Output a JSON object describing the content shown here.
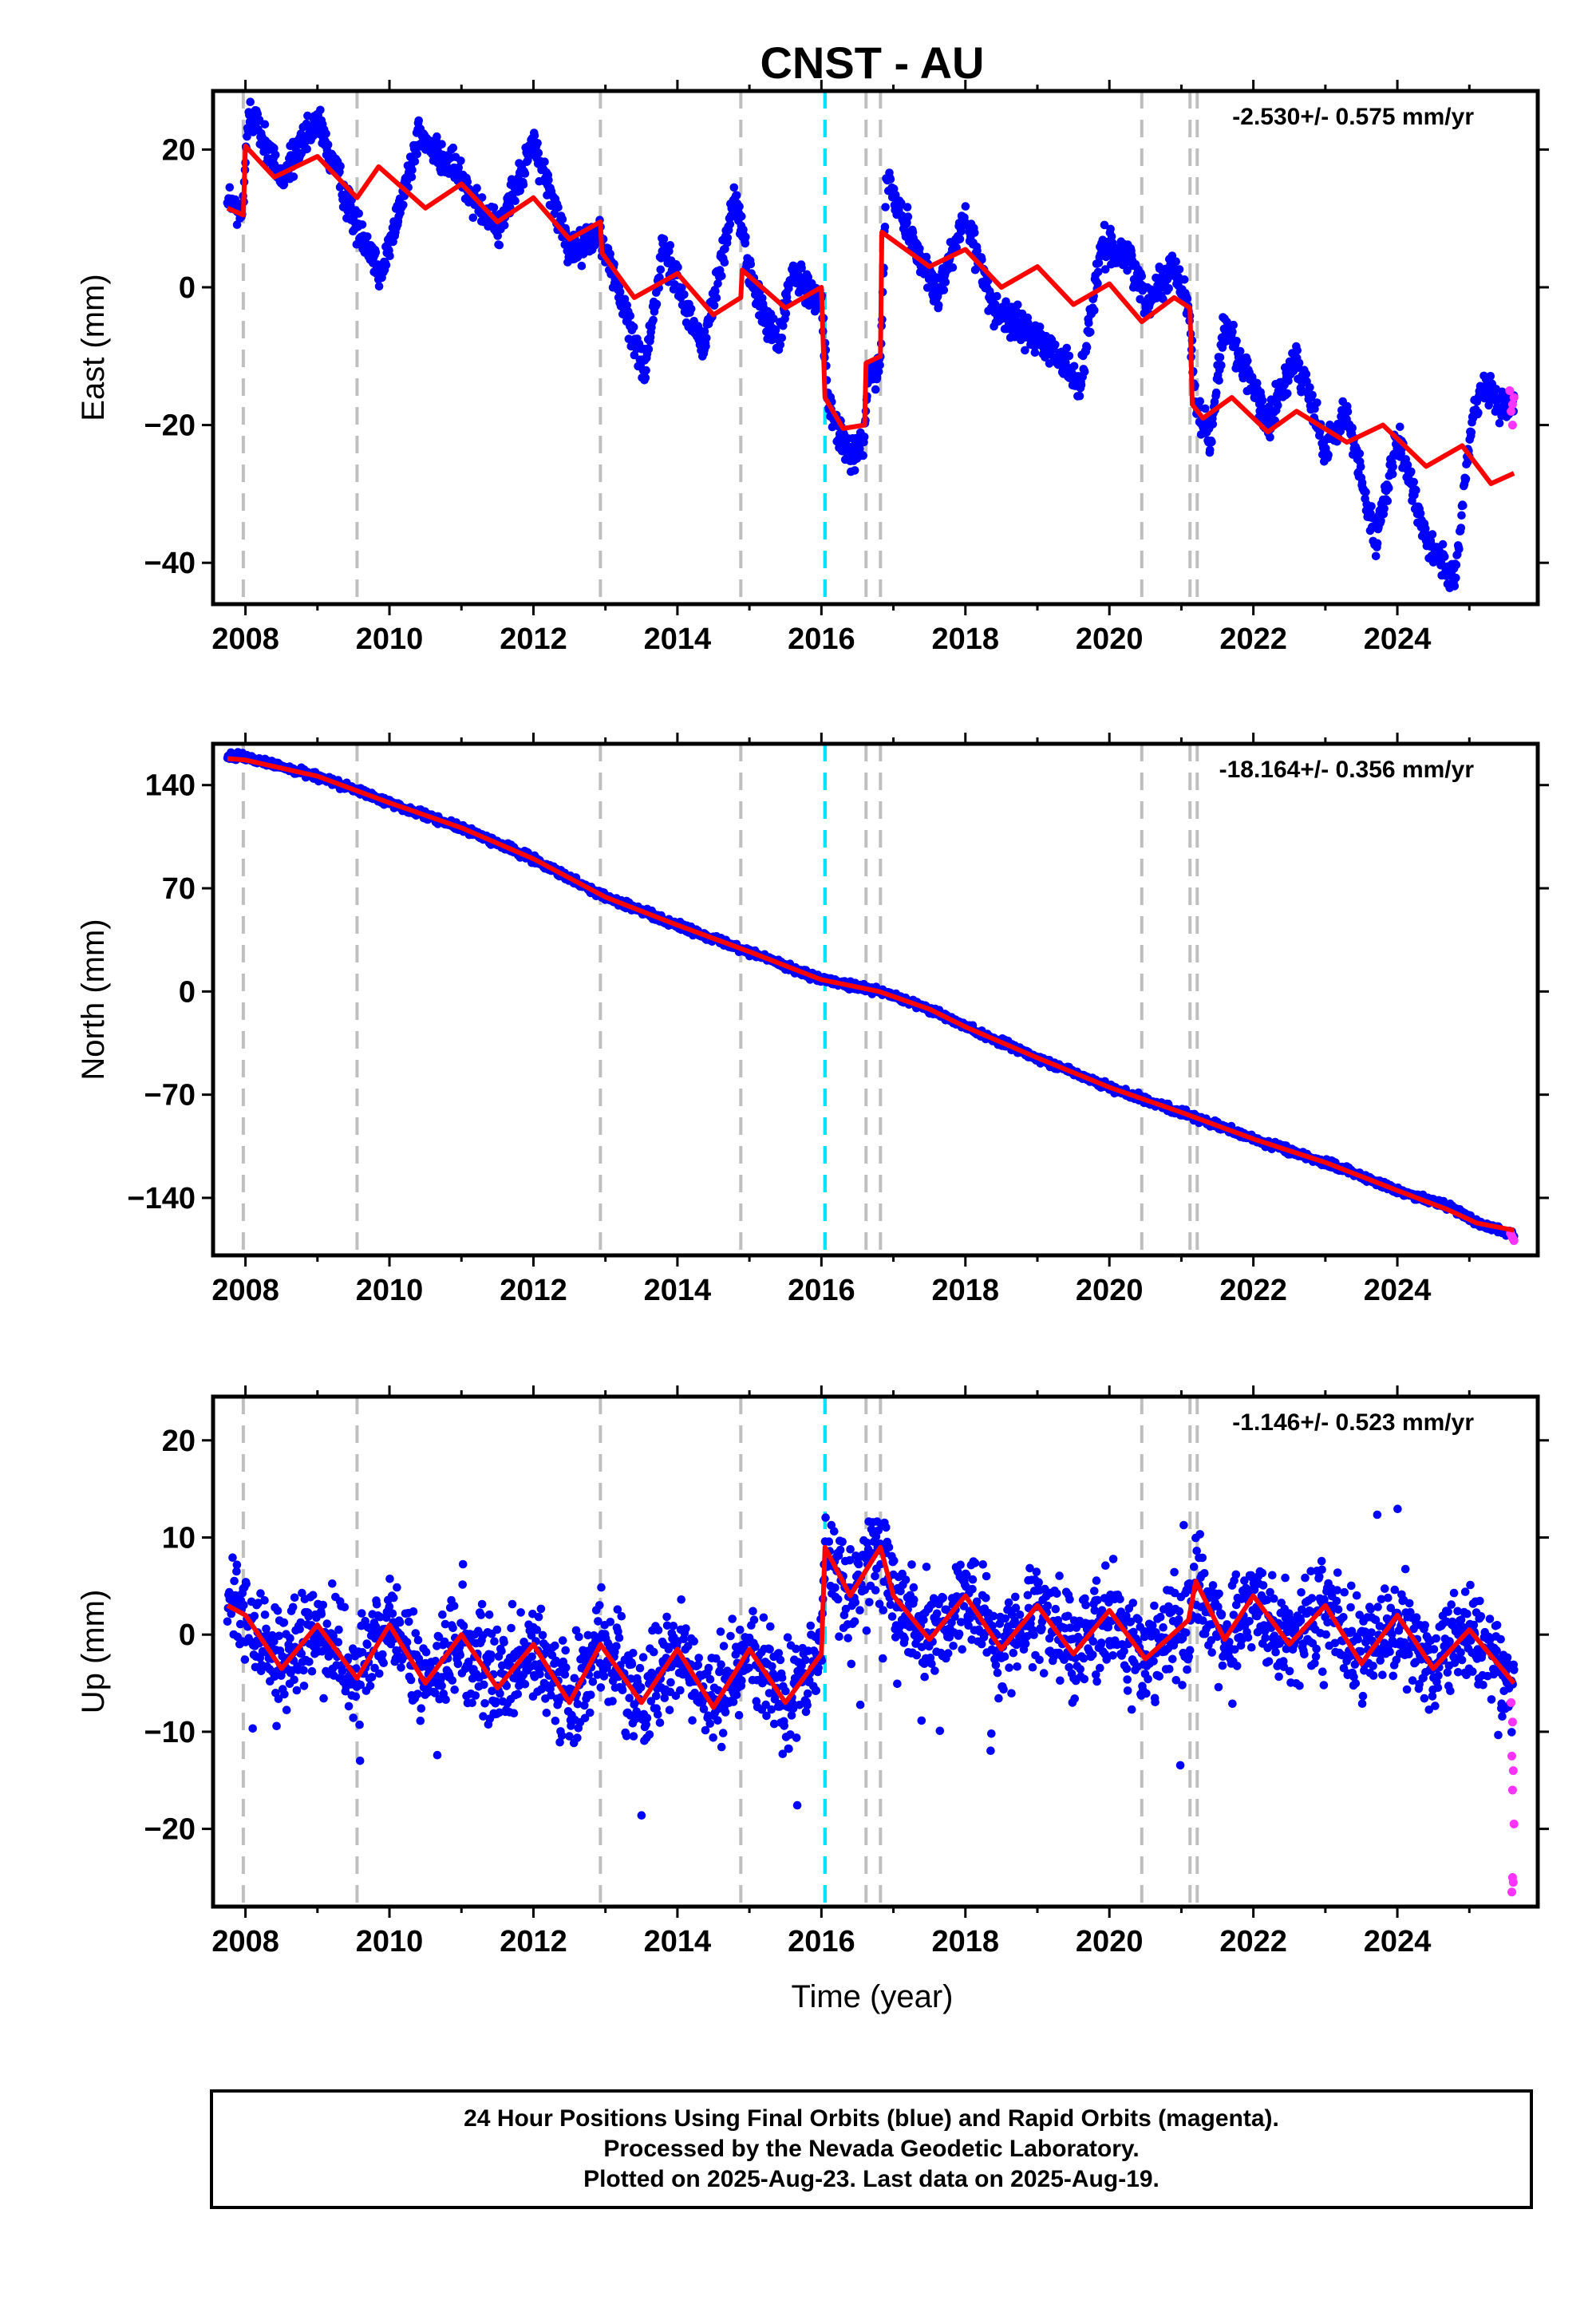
{
  "chart_data": [
    {
      "type": "scatter",
      "title": "CNST - AU",
      "ylabel": "East (mm)",
      "xlabel": "",
      "xlim": [
        2007.55,
        2025.95
      ],
      "ylim": [
        -46,
        28.5
      ],
      "yticks": [
        20,
        0,
        -20,
        -40
      ],
      "ytick_labels": [
        "20",
        "0",
        "−20",
        "−40"
      ],
      "xticks": [
        2008,
        2010,
        2012,
        2014,
        2016,
        2018,
        2020,
        2022,
        2024
      ],
      "rate_label": "-2.530+/- 0.575 mm/yr",
      "grid": false,
      "colors": {
        "final": "#0000ff",
        "rapid": "#ff33ff",
        "model": "#ff0000",
        "steps": "#bfbfbf",
        "equip": "#00e5ff"
      },
      "steps": [
        2007.97,
        2009.55,
        2012.93,
        2014.88,
        2016.62,
        2016.82,
        2020.45,
        2021.12,
        2021.22
      ],
      "equipment_changes": [
        2016.05
      ],
      "model_knots": [
        [
          2007.75,
          11.5
        ],
        [
          2007.97,
          10.5
        ],
        [
          2008.0,
          20.5
        ],
        [
          2008.4,
          16
        ],
        [
          2009.0,
          19
        ],
        [
          2009.55,
          13
        ],
        [
          2009.85,
          17.5
        ],
        [
          2010.5,
          11.5
        ],
        [
          2011.0,
          15
        ],
        [
          2011.5,
          9.5
        ],
        [
          2012.0,
          13
        ],
        [
          2012.5,
          7
        ],
        [
          2012.93,
          9.5
        ],
        [
          2012.95,
          5
        ],
        [
          2013.4,
          -1.5
        ],
        [
          2014.0,
          2
        ],
        [
          2014.5,
          -4
        ],
        [
          2014.88,
          -1.5
        ],
        [
          2014.9,
          2.5
        ],
        [
          2015.5,
          -3
        ],
        [
          2016.0,
          0
        ],
        [
          2016.05,
          -16
        ],
        [
          2016.3,
          -20.5
        ],
        [
          2016.6,
          -20
        ],
        [
          2016.62,
          -11
        ],
        [
          2016.82,
          -10
        ],
        [
          2016.84,
          8
        ],
        [
          2017.5,
          3
        ],
        [
          2018.0,
          5.5
        ],
        [
          2018.5,
          0
        ],
        [
          2019.0,
          3
        ],
        [
          2019.5,
          -2.5
        ],
        [
          2020.0,
          0.5
        ],
        [
          2020.45,
          -5
        ],
        [
          2020.9,
          -1.5
        ],
        [
          2021.12,
          -3
        ],
        [
          2021.15,
          -17
        ],
        [
          2021.3,
          -19
        ],
        [
          2021.7,
          -16
        ],
        [
          2022.2,
          -21
        ],
        [
          2022.6,
          -18
        ],
        [
          2023.3,
          -22.5
        ],
        [
          2023.8,
          -20
        ],
        [
          2024.4,
          -26
        ],
        [
          2024.9,
          -23
        ],
        [
          2025.3,
          -28.5
        ],
        [
          2025.62,
          -27
        ]
      ],
      "data_knots": [
        [
          2007.75,
          13
        ],
        [
          2007.95,
          10
        ],
        [
          2008.05,
          26
        ],
        [
          2008.5,
          16
        ],
        [
          2009.0,
          24
        ],
        [
          2009.5,
          10
        ],
        [
          2009.9,
          2
        ],
        [
          2010.4,
          22
        ],
        [
          2011.0,
          16
        ],
        [
          2011.5,
          8
        ],
        [
          2012.0,
          21
        ],
        [
          2012.5,
          5
        ],
        [
          2012.93,
          8
        ],
        [
          2013.1,
          2
        ],
        [
          2013.55,
          -12
        ],
        [
          2013.8,
          6
        ],
        [
          2014.1,
          -2
        ],
        [
          2014.35,
          -9
        ],
        [
          2014.8,
          13
        ],
        [
          2015.1,
          -2
        ],
        [
          2015.4,
          -8
        ],
        [
          2015.6,
          2
        ],
        [
          2016.0,
          -2
        ],
        [
          2016.1,
          -17
        ],
        [
          2016.4,
          -25
        ],
        [
          2016.6,
          -22
        ],
        [
          2016.65,
          -13
        ],
        [
          2016.82,
          -12
        ],
        [
          2016.9,
          16
        ],
        [
          2017.3,
          6
        ],
        [
          2017.6,
          -1
        ],
        [
          2018.0,
          10
        ],
        [
          2018.4,
          -3
        ],
        [
          2018.8,
          -6
        ],
        [
          2019.2,
          -9
        ],
        [
          2019.6,
          -14
        ],
        [
          2019.9,
          6
        ],
        [
          2020.3,
          4
        ],
        [
          2020.5,
          -2
        ],
        [
          2020.9,
          3
        ],
        [
          2021.1,
          -3
        ],
        [
          2021.2,
          -17
        ],
        [
          2021.4,
          -22
        ],
        [
          2021.6,
          -5
        ],
        [
          2022.2,
          -20
        ],
        [
          2022.6,
          -10
        ],
        [
          2023.0,
          -24
        ],
        [
          2023.3,
          -18
        ],
        [
          2023.7,
          -37
        ],
        [
          2024.0,
          -22
        ],
        [
          2024.4,
          -36
        ],
        [
          2024.8,
          -43
        ],
        [
          2025.0,
          -22
        ],
        [
          2025.2,
          -14
        ],
        [
          2025.5,
          -18
        ],
        [
          2025.62,
          -16
        ]
      ],
      "noise": 2.0,
      "rapid_points": [
        [
          2025.56,
          -15
        ],
        [
          2025.58,
          -18
        ],
        [
          2025.6,
          -20
        ],
        [
          2025.62,
          -16
        ],
        [
          2025.6,
          -17
        ]
      ]
    },
    {
      "type": "scatter",
      "title": "",
      "ylabel": "North (mm)",
      "xlabel": "",
      "xlim": [
        2007.55,
        2025.95
      ],
      "ylim": [
        -179,
        168
      ],
      "yticks": [
        140,
        70,
        0,
        -70,
        -140
      ],
      "ytick_labels": [
        "140",
        "70",
        "0",
        "−70",
        "−140"
      ],
      "xticks": [
        2008,
        2010,
        2012,
        2014,
        2016,
        2018,
        2020,
        2022,
        2024
      ],
      "rate_label": "-18.164+/- 0.356 mm/yr",
      "grid": false,
      "steps": [
        2007.97,
        2009.55,
        2012.93,
        2014.88,
        2016.62,
        2016.82,
        2020.45,
        2021.12,
        2021.22
      ],
      "equipment_changes": [
        2016.05
      ],
      "model_knots": [
        [
          2007.75,
          158
        ],
        [
          2008.0,
          157
        ],
        [
          2009.0,
          146
        ],
        [
          2010.0,
          128
        ],
        [
          2011.0,
          111
        ],
        [
          2012.0,
          90
        ],
        [
          2013.0,
          64
        ],
        [
          2014.0,
          45
        ],
        [
          2015.0,
          27
        ],
        [
          2016.0,
          8
        ],
        [
          2016.8,
          0
        ],
        [
          2017.5,
          -12
        ],
        [
          2018.0,
          -24
        ],
        [
          2019.0,
          -45
        ],
        [
          2020.0,
          -65
        ],
        [
          2021.0,
          -82
        ],
        [
          2022.0,
          -100
        ],
        [
          2023.0,
          -116
        ],
        [
          2024.0,
          -135
        ],
        [
          2024.7,
          -148
        ],
        [
          2025.1,
          -157
        ],
        [
          2025.62,
          -162
        ]
      ],
      "data_knots": [
        [
          2007.75,
          160
        ],
        [
          2008.0,
          159
        ],
        [
          2009.0,
          146
        ],
        [
          2010.0,
          128
        ],
        [
          2011.0,
          111
        ],
        [
          2012.0,
          90
        ],
        [
          2013.0,
          64
        ],
        [
          2014.0,
          45
        ],
        [
          2015.0,
          27
        ],
        [
          2016.0,
          8
        ],
        [
          2016.8,
          0
        ],
        [
          2017.5,
          -12
        ],
        [
          2018.0,
          -24
        ],
        [
          2019.0,
          -45
        ],
        [
          2020.0,
          -65
        ],
        [
          2021.0,
          -82
        ],
        [
          2022.0,
          -100
        ],
        [
          2023.0,
          -116
        ],
        [
          2024.0,
          -135
        ],
        [
          2024.7,
          -145
        ],
        [
          2025.1,
          -157
        ],
        [
          2025.62,
          -165
        ]
      ],
      "noise": 2.0,
      "rapid_points": [
        [
          2025.57,
          -164
        ],
        [
          2025.6,
          -167
        ],
        [
          2025.62,
          -169
        ],
        [
          2025.59,
          -166
        ]
      ]
    },
    {
      "type": "scatter",
      "title": "",
      "ylabel": "Up (mm)",
      "xlabel": "Time (year)",
      "xlim": [
        2007.55,
        2025.95
      ],
      "ylim": [
        -28,
        24.5
      ],
      "yticks": [
        20,
        10,
        0,
        -10,
        -20
      ],
      "ytick_labels": [
        "20",
        "10",
        "0",
        "−10",
        "−20"
      ],
      "xticks": [
        2008,
        2010,
        2012,
        2014,
        2016,
        2018,
        2020,
        2022,
        2024
      ],
      "rate_label": "-1.146+/- 0.523 mm/yr",
      "grid": false,
      "steps": [
        2007.97,
        2009.55,
        2012.93,
        2014.88,
        2016.62,
        2016.82,
        2020.45,
        2021.12,
        2021.22
      ],
      "equipment_changes": [
        2016.05
      ],
      "model_knots": [
        [
          2007.75,
          3
        ],
        [
          2008.0,
          2
        ],
        [
          2008.5,
          -3.5
        ],
        [
          2009.0,
          1
        ],
        [
          2009.55,
          -4.5
        ],
        [
          2010.0,
          1
        ],
        [
          2010.5,
          -5
        ],
        [
          2011.0,
          0
        ],
        [
          2011.5,
          -5.5
        ],
        [
          2012.0,
          -1
        ],
        [
          2012.5,
          -7
        ],
        [
          2012.93,
          -1
        ],
        [
          2013.5,
          -7
        ],
        [
          2014.0,
          -1.5
        ],
        [
          2014.5,
          -7.5
        ],
        [
          2015.0,
          -1.5
        ],
        [
          2015.5,
          -7
        ],
        [
          2016.0,
          -2
        ],
        [
          2016.05,
          9
        ],
        [
          2016.4,
          4
        ],
        [
          2016.82,
          9
        ],
        [
          2017.0,
          4
        ],
        [
          2017.5,
          -0.5
        ],
        [
          2018.0,
          4
        ],
        [
          2018.5,
          -1.5
        ],
        [
          2019.0,
          3
        ],
        [
          2019.5,
          -2
        ],
        [
          2020.0,
          2.5
        ],
        [
          2020.5,
          -2.5
        ],
        [
          2021.1,
          1.5
        ],
        [
          2021.2,
          5.5
        ],
        [
          2021.6,
          -0.5
        ],
        [
          2022.0,
          4
        ],
        [
          2022.5,
          -1
        ],
        [
          2023.0,
          3
        ],
        [
          2023.5,
          -3
        ],
        [
          2024.0,
          2
        ],
        [
          2024.5,
          -3.5
        ],
        [
          2025.0,
          0.5
        ],
        [
          2025.62,
          -5
        ]
      ],
      "data_knots": [
        [
          2007.75,
          3
        ],
        [
          2008.0,
          2
        ],
        [
          2008.5,
          -3.5
        ],
        [
          2009.0,
          1
        ],
        [
          2009.55,
          -4.5
        ],
        [
          2010.0,
          1
        ],
        [
          2010.5,
          -5
        ],
        [
          2011.0,
          0
        ],
        [
          2011.5,
          -5.5
        ],
        [
          2012.0,
          -1
        ],
        [
          2012.5,
          -7
        ],
        [
          2012.93,
          -1
        ],
        [
          2013.5,
          -7
        ],
        [
          2014.0,
          -1.5
        ],
        [
          2014.5,
          -7.5
        ],
        [
          2015.0,
          -1.5
        ],
        [
          2015.5,
          -7
        ],
        [
          2016.0,
          -2
        ],
        [
          2016.05,
          9
        ],
        [
          2016.4,
          4
        ],
        [
          2016.82,
          9
        ],
        [
          2017.0,
          4
        ],
        [
          2017.5,
          -0.5
        ],
        [
          2018.0,
          4
        ],
        [
          2018.5,
          -1.5
        ],
        [
          2019.0,
          3
        ],
        [
          2019.5,
          -2
        ],
        [
          2020.0,
          2.5
        ],
        [
          2020.5,
          -2.5
        ],
        [
          2021.1,
          1.5
        ],
        [
          2021.2,
          5.5
        ],
        [
          2021.6,
          -0.5
        ],
        [
          2022.0,
          4
        ],
        [
          2022.5,
          -1
        ],
        [
          2023.0,
          3
        ],
        [
          2023.5,
          -3
        ],
        [
          2024.0,
          2
        ],
        [
          2024.5,
          -3.5
        ],
        [
          2025.0,
          0.5
        ],
        [
          2025.62,
          -5
        ]
      ],
      "noise": 4.2,
      "rapid_points": [
        [
          2025.58,
          -7
        ],
        [
          2025.6,
          -9
        ],
        [
          2025.59,
          -12.5
        ],
        [
          2025.61,
          -14
        ],
        [
          2025.6,
          -16
        ],
        [
          2025.62,
          -19.5
        ],
        [
          2025.6,
          -25
        ],
        [
          2025.61,
          -25.5
        ],
        [
          2025.59,
          -26.5
        ]
      ]
    }
  ],
  "footer": {
    "line1": "24 Hour Positions Using Final Orbits (blue) and Rapid Orbits (magenta).",
    "line2": "Processed by the Nevada Geodetic Laboratory.",
    "line3": "Plotted on 2025-Aug-23. Last data on 2025-Aug-19."
  }
}
